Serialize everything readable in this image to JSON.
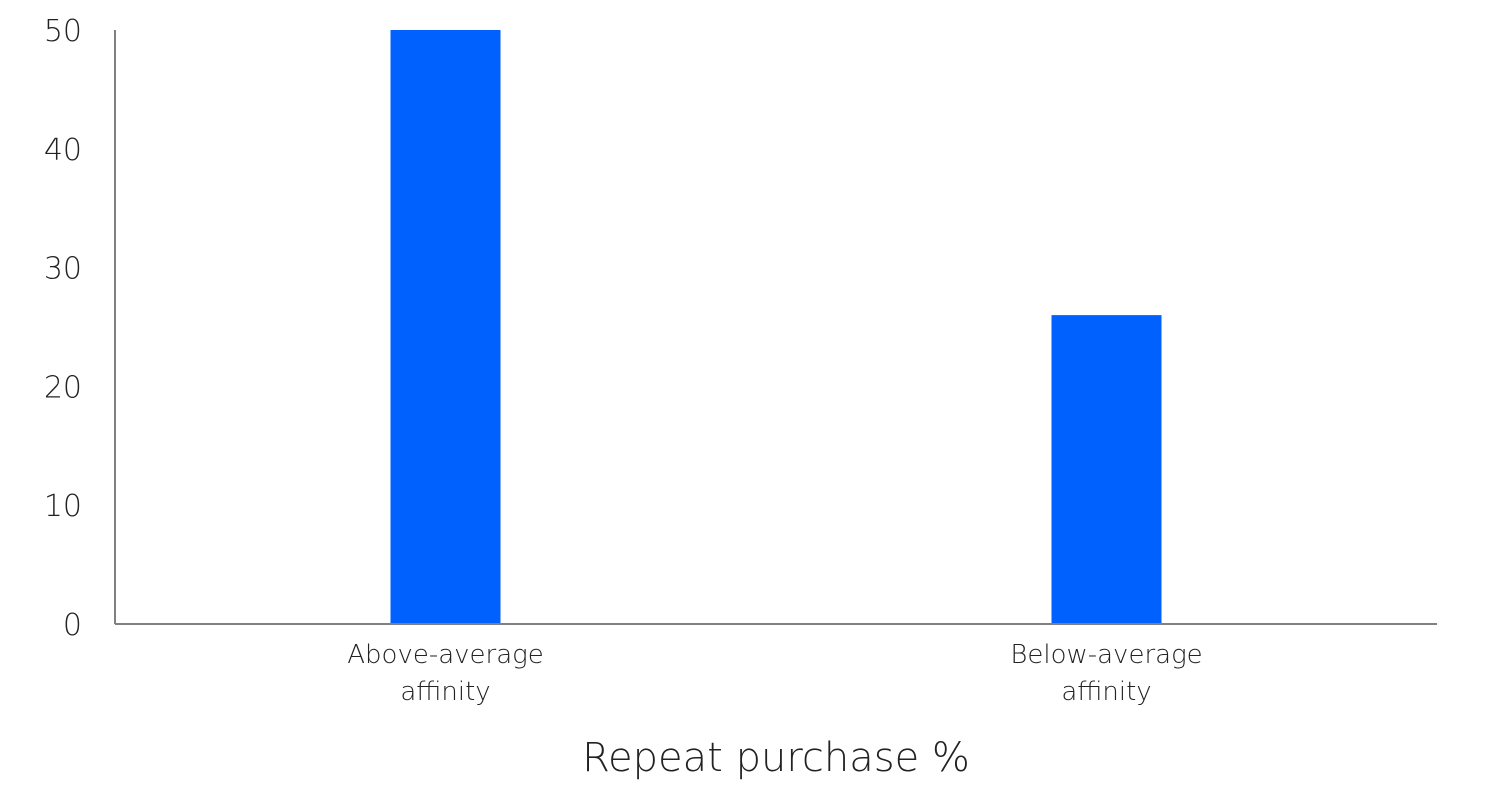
{
  "chart_data": {
    "type": "bar",
    "categories": [
      [
        "Above-average",
        "affinity"
      ],
      [
        "Below-average",
        "affinity"
      ]
    ],
    "values": [
      50,
      26
    ],
    "xlabel": "Repeat purchase %",
    "ylabel": "",
    "ylim": [
      0,
      50
    ],
    "yticks": [
      "0",
      "10",
      "20",
      "30",
      "40",
      "50"
    ],
    "grid": false,
    "bar_color": "#0061FF",
    "axis_color": "#808080"
  }
}
